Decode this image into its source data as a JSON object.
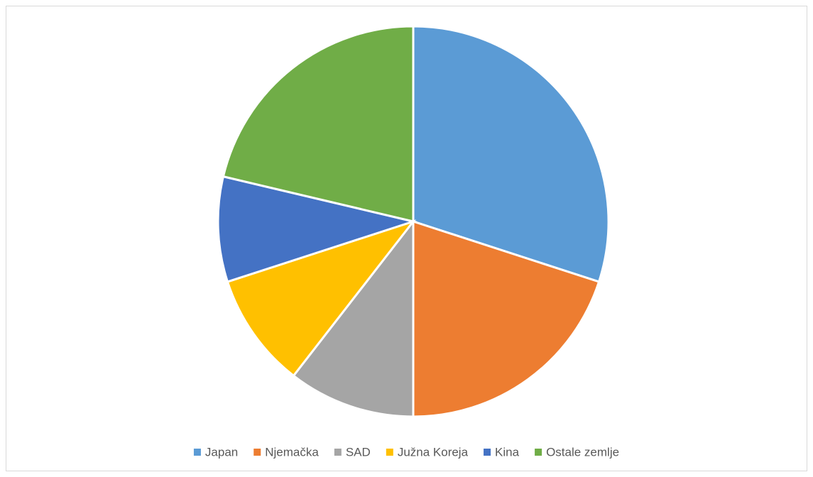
{
  "chart_data": {
    "type": "pie",
    "categories": [
      "Japan",
      "Njemačka",
      "SAD",
      "Južna Koreja",
      "Kina",
      "Ostale zemlje"
    ],
    "values": [
      30,
      20,
      10.5,
      9.5,
      8.7,
      21.3
    ],
    "colors": [
      "#5b9bd5",
      "#ed7d31",
      "#a5a5a5",
      "#ffc000",
      "#4472c4",
      "#70ad47"
    ],
    "legend": "bottom"
  }
}
